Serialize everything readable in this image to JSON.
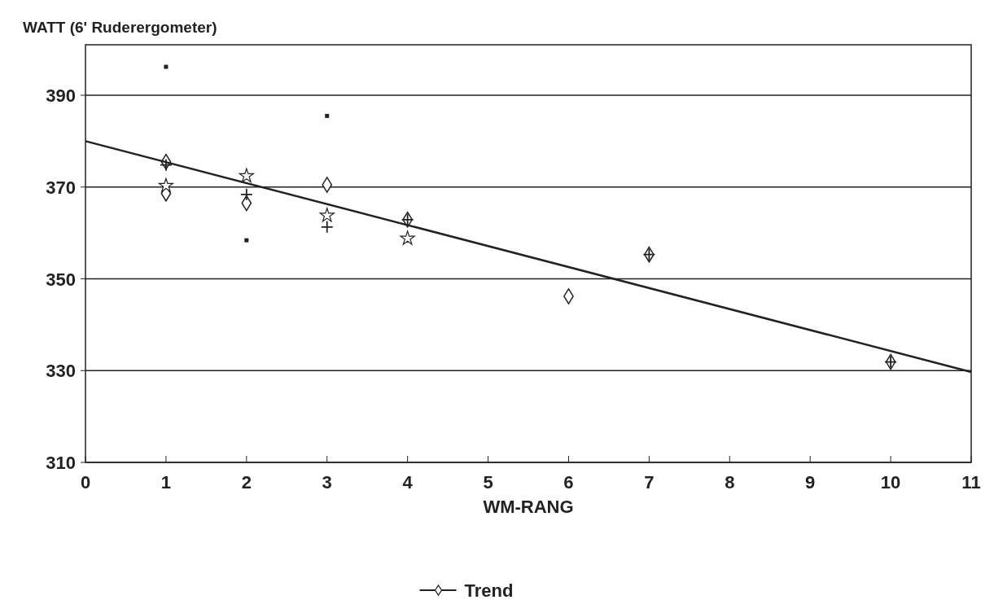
{
  "chart_data": {
    "type": "scatter",
    "ylabel": "WATT (6' Ruderergometer)",
    "xlabel": "WM-RANG",
    "xlim": [
      0,
      11
    ],
    "xticks": [
      0,
      1,
      2,
      3,
      4,
      5,
      6,
      7,
      8,
      9,
      10,
      11
    ],
    "ylim": [
      310,
      401
    ],
    "yticks": [
      310,
      330,
      350,
      370,
      390
    ],
    "grid": "y",
    "legend": "bottom",
    "series": [
      {
        "color": "#222222",
        "marker": "diamond",
        "x": [
          1,
          1,
          2,
          3,
          4,
          6,
          7,
          10
        ],
        "values": [
          375.5,
          368.6,
          366.5,
          370.5,
          362.9,
          346.2,
          355.3,
          331.9
        ]
      },
      {
        "color": "#222222",
        "marker": "star",
        "x": [
          1,
          2,
          3,
          4
        ],
        "values": [
          370.3,
          372.4,
          363.8,
          358.8
        ]
      },
      {
        "color": "#222222",
        "marker": "cross",
        "x": [
          1,
          2,
          3,
          4,
          7,
          10
        ],
        "values": [
          374.8,
          368.4,
          361.3,
          362.9,
          355.3,
          331.9
        ]
      },
      {
        "color": "#222222",
        "marker": "square",
        "x": [
          1,
          2,
          3
        ],
        "values": [
          396.2,
          358.4,
          385.5
        ]
      },
      {
        "type": "line",
        "name": "Trend",
        "color": "#222222",
        "x": [
          0,
          11
        ],
        "values": [
          380,
          329.7
        ]
      }
    ]
  }
}
